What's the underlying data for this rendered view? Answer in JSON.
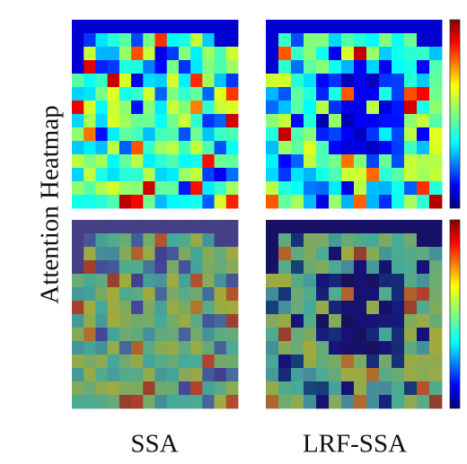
{
  "figure": {
    "row_label": "Attention Heatmap",
    "column_labels": [
      "SSA",
      "LRF-SSA"
    ]
  }
}
